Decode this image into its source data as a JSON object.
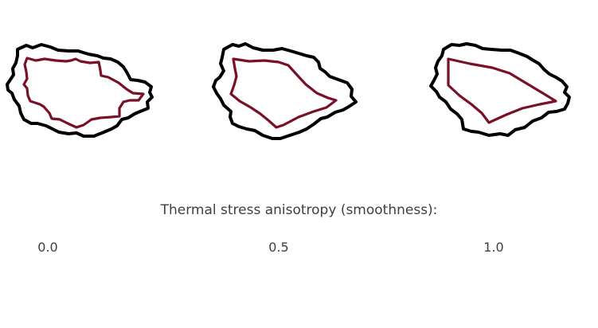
{
  "caption": "Thermal stress anisotropy (smoothness):",
  "values": [
    "0.0",
    "0.5",
    "1.0"
  ],
  "colors": {
    "outer_outline": "#000000",
    "inner_outline": "#7a1026",
    "text": "#3f3f3f",
    "background": "#ffffff"
  },
  "shapes": [
    {
      "name": "shape-anisotropy-0",
      "inner_style": "rough"
    },
    {
      "name": "shape-anisotropy-0.5",
      "inner_style": "semi-smooth"
    },
    {
      "name": "shape-anisotropy-1",
      "inner_style": "smooth"
    }
  ]
}
